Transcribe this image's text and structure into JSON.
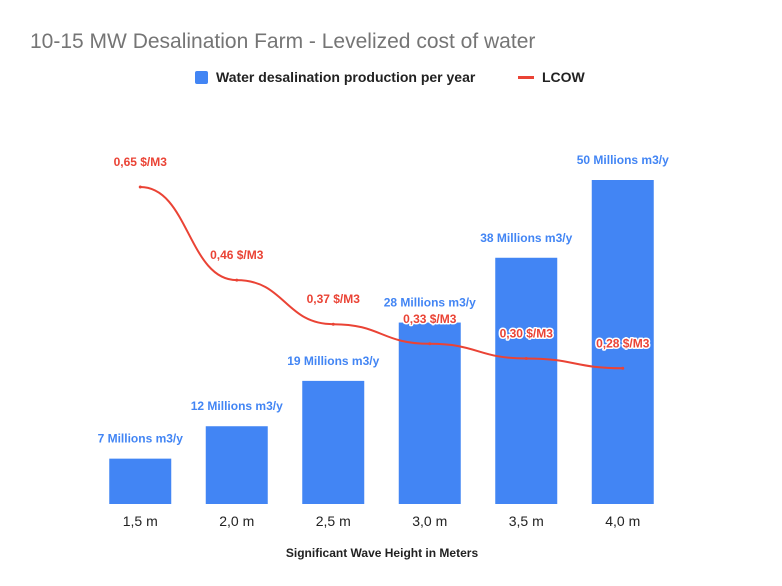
{
  "chart_data": {
    "type": "bar",
    "title": "10-15 MW Desalination Farm - Levelized cost of water",
    "xlabel": "Significant Wave Height in Meters",
    "ylabel": "",
    "legend_position": "top",
    "categories": [
      "1,5 m",
      "2,0 m",
      "2,5 m",
      "3,0 m",
      "3,5 m",
      "4,0 m"
    ],
    "series": [
      {
        "name": "Water desalination production per year",
        "type": "bar",
        "color": "#4285f4",
        "values": [
          7,
          12,
          19,
          28,
          38,
          50
        ],
        "labels": [
          "7 Millions m3/y",
          "12 Millions m3/y",
          "19 Millions m3/y",
          "28 Millions m3/y",
          "38 Millions m3/y",
          "50 Millions m3/y"
        ]
      },
      {
        "name": "LCOW",
        "type": "line",
        "color": "#ea4335",
        "values": [
          0.65,
          0.46,
          0.37,
          0.33,
          0.3,
          0.28
        ],
        "labels": [
          "0,65  $/M3",
          "0,46  $/M3",
          "0,37  $/M3",
          "0,33  $/M3",
          "0,30  $/M3",
          "0,28  $/M3"
        ]
      }
    ],
    "ylim_bars": [
      0,
      55
    ],
    "ylim_line": [
      0,
      0.8
    ],
    "grid": false
  }
}
